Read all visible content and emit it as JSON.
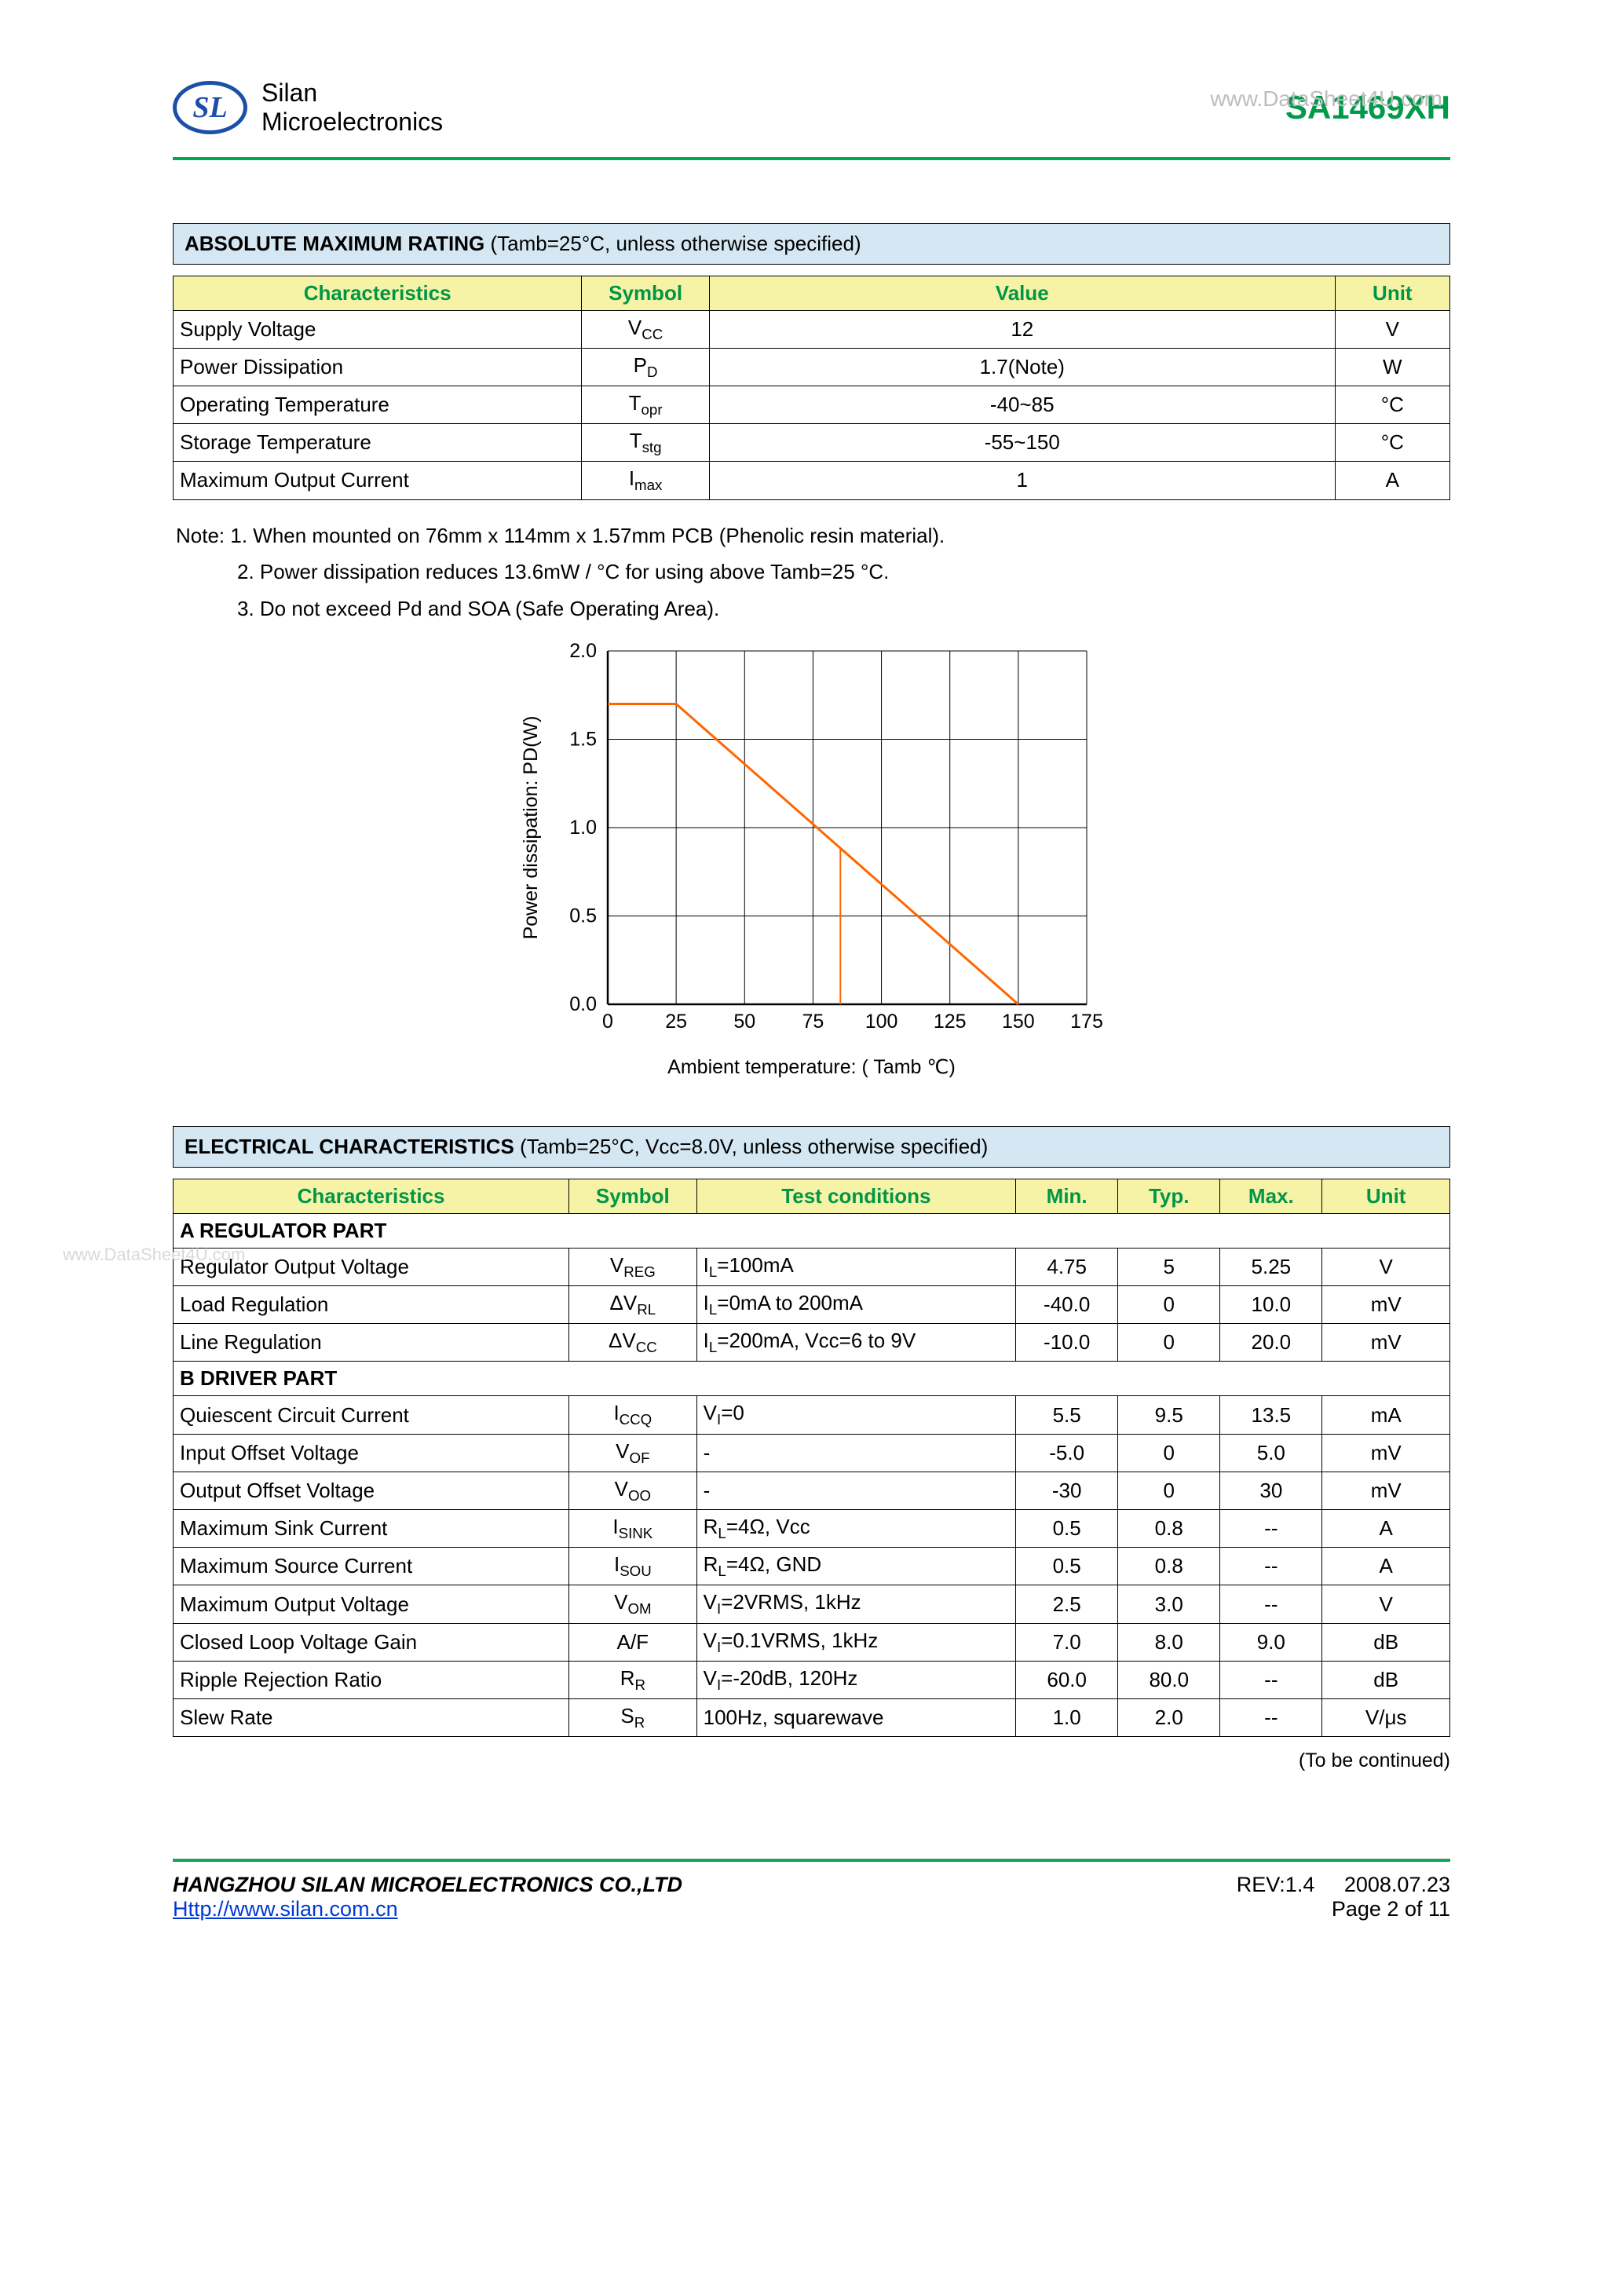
{
  "watermark_top": "www.DataSheet4U.com",
  "watermark_side": "www.DataSheet4U.com",
  "brand": {
    "name_line1": "Silan",
    "name_line2": "Microelectronics",
    "logo_text": "SL"
  },
  "part_number": "SA1469XH",
  "abs_max": {
    "title_bold": "ABSOLUTE MAXIMUM RATING",
    "title_rest": " (Tamb=25°C, unless otherwise specified)",
    "headers": [
      "Characteristics",
      "Symbol",
      "Value",
      "Unit"
    ],
    "rows": [
      {
        "char": "Supply Voltage",
        "sym": "V",
        "sym_sub": "CC",
        "val": "12",
        "unit": "V"
      },
      {
        "char": "Power Dissipation",
        "sym": "P",
        "sym_sub": "D",
        "val": "1.7(Note)",
        "unit": "W"
      },
      {
        "char": "Operating Temperature",
        "sym": "T",
        "sym_sub": "opr",
        "val": "-40~85",
        "unit": "°C"
      },
      {
        "char": "Storage Temperature",
        "sym": "T",
        "sym_sub": "stg",
        "val": "-55~150",
        "unit": "°C"
      },
      {
        "char": "Maximum Output Current",
        "sym": "I",
        "sym_sub": "max",
        "val": "1",
        "unit": "A"
      }
    ]
  },
  "notes": [
    "Note: 1. When mounted on 76mm x 114mm x 1.57mm PCB (Phenolic resin material).",
    "2. Power dissipation reduces 13.6mW / °C for using above Tamb=25 °C.",
    "3. Do not exceed Pd and SOA (Safe Operating Area)."
  ],
  "chart": {
    "type": "line",
    "ylabel": "Power dissipation: PD(W)",
    "xlabel": "Ambient temperature: ( Tamb ℃)",
    "xlim": [
      0,
      175
    ],
    "xtick_step": 25,
    "ylim": [
      0,
      2.0
    ],
    "ytick_step": 0.5,
    "background_color": "#ffffff",
    "axis_color": "#000000",
    "grid_color": "#000000",
    "font_size": 25,
    "solid": {
      "color": "#ff6600",
      "width": 3,
      "points": [
        [
          0,
          1.7
        ],
        [
          25,
          1.7
        ],
        [
          150,
          0
        ]
      ]
    },
    "dashed": {
      "color": "#ff6600",
      "width": 2,
      "dash": "6,6",
      "points": [
        [
          85,
          0.88
        ],
        [
          150,
          0
        ]
      ]
    },
    "drop_line": {
      "color": "#ff6600",
      "width": 2,
      "points": [
        [
          85,
          0
        ],
        [
          85,
          0.88
        ]
      ]
    }
  },
  "elec": {
    "title_bold": "ELECTRICAL CHARACTERISTICS",
    "title_rest": " (Tamb=25°C, Vcc=8.0V, unless otherwise specified)",
    "headers": [
      "Characteristics",
      "Symbol",
      "Test conditions",
      "Min.",
      "Typ.",
      "Max.",
      "Unit"
    ],
    "sections": [
      {
        "title": "A REGULATOR PART",
        "rows": [
          {
            "char": "Regulator Output Voltage",
            "sym": "V",
            "sym_sub": "REG",
            "cond_pre": "I",
            "cond_sub": "L",
            "cond_post": "=100mA",
            "min": "4.75",
            "typ": "5",
            "max": "5.25",
            "unit": "V"
          },
          {
            "char": "Load Regulation",
            "sym": "ΔV",
            "sym_sub": "RL",
            "cond_pre": "I",
            "cond_sub": "L",
            "cond_post": "=0mA to 200mA",
            "min": "-40.0",
            "typ": "0",
            "max": "10.0",
            "unit": "mV"
          },
          {
            "char": "Line Regulation",
            "sym": "ΔV",
            "sym_sub": "CC",
            "cond_pre": "I",
            "cond_sub": "L",
            "cond_post": "=200mA, Vcc=6 to 9V",
            "min": "-10.0",
            "typ": "0",
            "max": "20.0",
            "unit": "mV"
          }
        ]
      },
      {
        "title": "B DRIVER PART",
        "rows": [
          {
            "char": "Quiescent Circuit Current",
            "sym": "I",
            "sym_sub": "CCQ",
            "cond_pre": "V",
            "cond_sub": "I",
            "cond_post": "=0",
            "min": "5.5",
            "typ": "9.5",
            "max": "13.5",
            "unit": "mA"
          },
          {
            "char": "Input Offset Voltage",
            "sym": "V",
            "sym_sub": "OF",
            "cond_pre": "-",
            "cond_sub": "",
            "cond_post": "",
            "min": "-5.0",
            "typ": "0",
            "max": "5.0",
            "unit": "mV"
          },
          {
            "char": "Output Offset Voltage",
            "sym": "V",
            "sym_sub": "OO",
            "cond_pre": "-",
            "cond_sub": "",
            "cond_post": "",
            "min": "-30",
            "typ": "0",
            "max": "30",
            "unit": "mV"
          },
          {
            "char": "Maximum Sink Current",
            "sym": "I",
            "sym_sub": "SINK",
            "cond_pre": "R",
            "cond_sub": "L",
            "cond_post": "=4Ω, Vcc",
            "min": "0.5",
            "typ": "0.8",
            "max": "--",
            "unit": "A"
          },
          {
            "char": "Maximum Source Current",
            "sym": "I",
            "sym_sub": "SOU",
            "cond_pre": "R",
            "cond_sub": "L",
            "cond_post": "=4Ω, GND",
            "min": "0.5",
            "typ": "0.8",
            "max": "--",
            "unit": "A"
          },
          {
            "char": "Maximum Output Voltage",
            "sym": "V",
            "sym_sub": "OM",
            "cond_pre": "V",
            "cond_sub": "I",
            "cond_post": "=2VRMS, 1kHz",
            "min": "2.5",
            "typ": "3.0",
            "max": "--",
            "unit": "V"
          },
          {
            "char": "Closed Loop Voltage Gain",
            "sym": "A/F",
            "sym_sub": "",
            "cond_pre": "V",
            "cond_sub": "I",
            "cond_post": "=0.1VRMS, 1kHz",
            "min": "7.0",
            "typ": "8.0",
            "max": "9.0",
            "unit": "dB"
          },
          {
            "char": "Ripple Rejection Ratio",
            "sym": "R",
            "sym_sub": "R",
            "cond_pre": "V",
            "cond_sub": "I",
            "cond_post": "=-20dB, 120Hz",
            "min": "60.0",
            "typ": "80.0",
            "max": "--",
            "unit": "dB"
          },
          {
            "char": "Slew Rate",
            "sym": "S",
            "sym_sub": "R",
            "cond_pre": "100Hz, squarewave",
            "cond_sub": "",
            "cond_post": "",
            "min": "1.0",
            "typ": "2.0",
            "max": "--",
            "unit": "V/μs"
          }
        ]
      }
    ]
  },
  "to_be_continued": "(To be continued)",
  "footer": {
    "company": "HANGZHOU SILAN MICROELECTRONICS CO.,LTD",
    "url": "Http://www.silan.com.cn",
    "rev": "REV:1.4",
    "date": "2008.07.23",
    "page": "Page 2 of 11"
  }
}
